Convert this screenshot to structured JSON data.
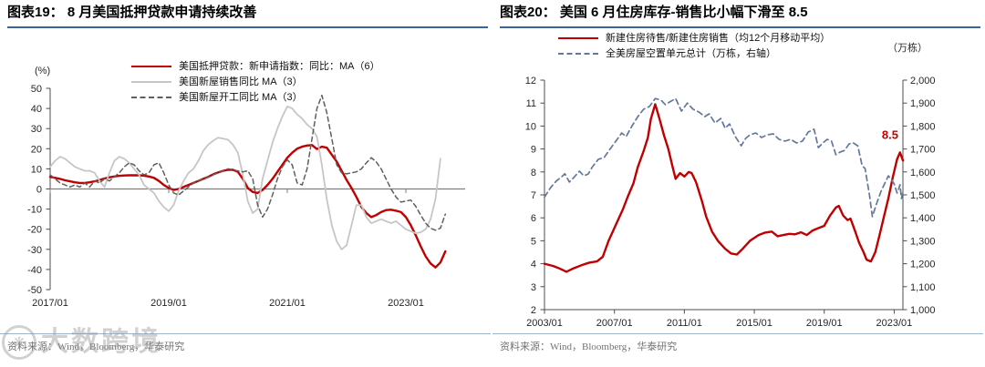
{
  "figures": [
    {
      "title": "图表19： 8 月美国抵押贷款申请持续改善",
      "source": "资料来源：Wind，Bloomberg，华泰研究"
    },
    {
      "title": "图表20： 美国 6 月住房库存-销售比小幅下滑至 8.5",
      "source": "资料来源：Wind，Bloomberg，华泰研究"
    }
  ],
  "watermark": {
    "text": "大数跨境"
  },
  "accent_colors": {
    "title_rule": "#3a659b",
    "footer_rule": "#9db4cb",
    "red": "#c00000"
  },
  "chart_data": [
    {
      "type": "line",
      "title": "8月美国抵押贷款申请持续改善",
      "unit_label": "(%)",
      "x_start": "2017/01",
      "x_freq": "monthly",
      "ylim": [
        -50,
        50
      ],
      "yticks": [
        50,
        40,
        30,
        20,
        10,
        0,
        -10,
        -20,
        -30,
        -40,
        -50
      ],
      "xticks": [
        {
          "m": 0,
          "label": "2017/01"
        },
        {
          "m": 24,
          "label": "2019/01"
        },
        {
          "m": 48,
          "label": "2021/01"
        },
        {
          "m": 72,
          "label": "2023/01"
        }
      ],
      "grid": "zero-line-only",
      "legend_position": "top",
      "series": [
        {
          "key": "mortgage-applications",
          "name": "美国抵押贷款：新申请指数：同比：MA（6）",
          "color": "#c00000",
          "style": "solid",
          "width": 2.4,
          "values": [
            6.0,
            5.5,
            5.0,
            4.3,
            3.8,
            3.3,
            3.0,
            3.0,
            3.3,
            3.8,
            4.5,
            5.2,
            5.8,
            6.2,
            6.5,
            6.7,
            6.8,
            6.8,
            6.8,
            6.6,
            6.2,
            5.5,
            4.0,
            2.0,
            0.5,
            -0.5,
            0.0,
            1.0,
            2.0,
            3.0,
            4.0,
            5.0,
            6.0,
            7.3,
            8.2,
            9.0,
            9.5,
            9.5,
            8.5,
            5.0,
            0.5,
            -1.5,
            -2.0,
            -0.5,
            2.0,
            5.0,
            8.5,
            12.0,
            15.5,
            18.0,
            20.0,
            21.0,
            21.6,
            21.8,
            19.8,
            21.0,
            20.5,
            17.0,
            13.6,
            9.0,
            4.5,
            0.5,
            -4.0,
            -9.0,
            -12.0,
            -14.0,
            -13.0,
            -11.5,
            -10.5,
            -10.3,
            -10.8,
            -11.5,
            -14.0,
            -18.0,
            -23.0,
            -28.5,
            -33.5,
            -37.0,
            -39.0,
            -36.5,
            -31.0
          ]
        },
        {
          "key": "new-home-sales",
          "name": "美国新屋销售同比 MA（3）",
          "color": "#c6c6c6",
          "style": "solid",
          "width": 1.8,
          "values": [
            11,
            14,
            16,
            15,
            13,
            11,
            10,
            9,
            9,
            8,
            4,
            1,
            8,
            14,
            16,
            15,
            13,
            10,
            7,
            2,
            0,
            -2,
            -6,
            -9,
            -11,
            -8,
            -1,
            4,
            8,
            10,
            14,
            19,
            22,
            24,
            25.5,
            25,
            24.5,
            22,
            18,
            7,
            -6,
            -12,
            -10,
            5,
            14,
            23,
            30,
            36,
            41,
            40,
            37,
            35,
            32,
            30,
            26,
            12,
            -5,
            -18,
            -26,
            -30,
            -28,
            -18,
            -8,
            -8,
            -14,
            -17,
            -16,
            -15,
            -16,
            -17,
            -16,
            -18,
            -20,
            -21,
            -22,
            -21.5,
            -20,
            -15,
            -5,
            15
          ]
        },
        {
          "key": "housing-starts",
          "name": "美国新屋开工同比 MA（3）",
          "color": "#5f5f5f",
          "style": "dashed",
          "width": 1.5,
          "values": [
            7,
            5,
            3,
            2,
            1,
            2,
            1,
            3,
            1,
            4,
            3,
            5,
            4,
            6,
            8,
            11,
            13,
            12,
            9,
            7,
            8,
            12,
            13,
            8,
            2,
            -2,
            -3,
            -1,
            1,
            3,
            4,
            5,
            6,
            7,
            8,
            9,
            10,
            9.5,
            9,
            8.5,
            9,
            5,
            -8,
            -14,
            -10,
            -3,
            5,
            11,
            14.5,
            12,
            3,
            2,
            10,
            25,
            40,
            46.5,
            38,
            25,
            12,
            8,
            7.5,
            8,
            8.5,
            10,
            13,
            15.5,
            13.5,
            10,
            5,
            0,
            -4,
            -6.5,
            -6,
            -5.5,
            -8.6,
            -13,
            -17,
            -19.5,
            -20.5,
            -19.5,
            -12.5
          ]
        }
      ],
      "source": "资料来源：Wind，Bloomberg，华泰研究"
    },
    {
      "type": "line",
      "title": "美国6月住房库存-销售比小幅下滑至8.5",
      "unit_label_right": "（万栋）",
      "x_start": "2003/01",
      "x_freq": "monthly",
      "y_left": {
        "lim": [
          2,
          12
        ],
        "ticks": [
          12,
          11,
          10,
          9,
          8,
          7,
          6,
          5,
          4,
          3,
          2
        ]
      },
      "y_right": {
        "lim": [
          1000,
          2000
        ],
        "ticks": [
          "2,000",
          "1,900",
          "1,800",
          "1,700",
          "1,600",
          "1,500",
          "1,400",
          "1,300",
          "1,200",
          "1,100",
          "1,000"
        ]
      },
      "xticks": [
        {
          "m": 0,
          "label": "2003/01"
        },
        {
          "m": 48,
          "label": "2007/01"
        },
        {
          "m": 96,
          "label": "2011/01"
        },
        {
          "m": 144,
          "label": "2015/01"
        },
        {
          "m": 192,
          "label": "2019/01"
        },
        {
          "m": 240,
          "label": "2023/01"
        }
      ],
      "annotation": {
        "text": "8.5",
        "color": "#c00000",
        "m": 246,
        "value": 9.45
      },
      "legend_position": "top",
      "series": [
        {
          "key": "inventory-sales-ratio",
          "name": "新建住房待售/新建住房销售（均12个月移动平均）",
          "axis": "left",
          "color": "#c00000",
          "style": "solid",
          "width": 2.4,
          "points": [
            [
              0,
              4.0
            ],
            [
              6,
              3.9
            ],
            [
              10,
              3.8
            ],
            [
              15,
              3.65
            ],
            [
              20,
              3.8
            ],
            [
              26,
              3.95
            ],
            [
              31,
              4.05
            ],
            [
              36,
              4.1
            ],
            [
              40,
              4.3
            ],
            [
              44,
              5.0
            ],
            [
              49,
              5.7
            ],
            [
              54,
              6.4
            ],
            [
              57,
              6.9
            ],
            [
              61,
              7.5
            ],
            [
              64,
              8.2
            ],
            [
              68,
              8.9
            ],
            [
              71,
              9.5
            ],
            [
              73,
              10.3
            ],
            [
              76,
              10.95
            ],
            [
              79,
              10.3
            ],
            [
              82,
              9.6
            ],
            [
              85,
              9.0
            ],
            [
              88,
              8.2
            ],
            [
              90,
              7.7
            ],
            [
              93,
              7.95
            ],
            [
              96,
              7.8
            ],
            [
              99,
              8.0
            ],
            [
              101,
              7.95
            ],
            [
              104,
              7.55
            ],
            [
              108,
              6.75
            ],
            [
              111,
              6.05
            ],
            [
              115,
              5.4
            ],
            [
              119,
              5.0
            ],
            [
              124,
              4.65
            ],
            [
              128,
              4.45
            ],
            [
              132,
              4.4
            ],
            [
              136,
              4.65
            ],
            [
              141,
              5.0
            ],
            [
              147,
              5.25
            ],
            [
              151,
              5.35
            ],
            [
              156,
              5.4
            ],
            [
              160,
              5.2
            ],
            [
              164,
              5.25
            ],
            [
              168,
              5.3
            ],
            [
              172,
              5.28
            ],
            [
              176,
              5.37
            ],
            [
              180,
              5.25
            ],
            [
              184,
              5.45
            ],
            [
              188,
              5.55
            ],
            [
              192,
              5.65
            ],
            [
              196,
              6.1
            ],
            [
              200,
              6.45
            ],
            [
              202,
              6.52
            ],
            [
              205,
              6.1
            ],
            [
              208,
              5.9
            ],
            [
              210,
              5.97
            ],
            [
              213,
              5.45
            ],
            [
              216,
              4.9
            ],
            [
              219,
              4.5
            ],
            [
              221,
              4.18
            ],
            [
              224,
              4.1
            ],
            [
              227,
              4.5
            ],
            [
              230,
              5.25
            ],
            [
              233,
              6.05
            ],
            [
              236,
              6.84
            ],
            [
              239,
              7.75
            ],
            [
              242,
              8.55
            ],
            [
              244,
              8.85
            ],
            [
              246,
              8.5
            ]
          ]
        },
        {
          "key": "vacant-units",
          "name": "全美房屋空置单元总计（万栋，右轴）",
          "axis": "right",
          "color": "#64779b",
          "style": "dashed",
          "width": 1.7,
          "points": [
            [
              0,
              1490
            ],
            [
              4,
              1530
            ],
            [
              8,
              1560
            ],
            [
              12,
              1580
            ],
            [
              14,
              1592
            ],
            [
              17,
              1556
            ],
            [
              20,
              1575
            ],
            [
              24,
              1603
            ],
            [
              27,
              1583
            ],
            [
              30,
              1591
            ],
            [
              33,
              1623
            ],
            [
              37,
              1655
            ],
            [
              41,
              1663
            ],
            [
              45,
              1700
            ],
            [
              49,
              1734
            ],
            [
              53,
              1770
            ],
            [
              56,
              1754
            ],
            [
              60,
              1800
            ],
            [
              64,
              1840
            ],
            [
              68,
              1873
            ],
            [
              72,
              1885
            ],
            [
              76,
              1920
            ],
            [
              80,
              1913
            ],
            [
              83,
              1893
            ],
            [
              86,
              1905
            ],
            [
              90,
              1920
            ],
            [
              94,
              1865
            ],
            [
              98,
              1900
            ],
            [
              102,
              1873
            ],
            [
              106,
              1861
            ],
            [
              110,
              1841
            ],
            [
              113,
              1853
            ],
            [
              117,
              1813
            ],
            [
              121,
              1833
            ],
            [
              124,
              1790
            ],
            [
              127,
              1809
            ],
            [
              131,
              1754
            ],
            [
              135,
              1714
            ],
            [
              138,
              1746
            ],
            [
              141,
              1762
            ],
            [
              145,
              1770
            ],
            [
              149,
              1750
            ],
            [
              153,
              1762
            ],
            [
              157,
              1766
            ],
            [
              161,
              1742
            ],
            [
              165,
              1734
            ],
            [
              169,
              1742
            ],
            [
              173,
              1726
            ],
            [
              177,
              1734
            ],
            [
              181,
              1774
            ],
            [
              185,
              1786
            ],
            [
              188,
              1706
            ],
            [
              191,
              1726
            ],
            [
              194,
              1742
            ],
            [
              197,
              1734
            ],
            [
              200,
              1675
            ],
            [
              203,
              1687
            ],
            [
              206,
              1694
            ],
            [
              209,
              1722
            ],
            [
              212,
              1726
            ],
            [
              215,
              1714
            ],
            [
              218,
              1627
            ],
            [
              220,
              1615
            ],
            [
              223,
              1500
            ],
            [
              225,
              1405
            ],
            [
              228,
              1464
            ],
            [
              231,
              1516
            ],
            [
              234,
              1556
            ],
            [
              236,
              1583
            ],
            [
              238,
              1567
            ],
            [
              240,
              1548
            ],
            [
              242,
              1508
            ],
            [
              243,
              1524
            ],
            [
              244,
              1544
            ],
            [
              245,
              1484
            ],
            [
              246,
              1516
            ]
          ]
        }
      ],
      "source": "资料来源：Wind，Bloomberg，华泰研究"
    }
  ]
}
